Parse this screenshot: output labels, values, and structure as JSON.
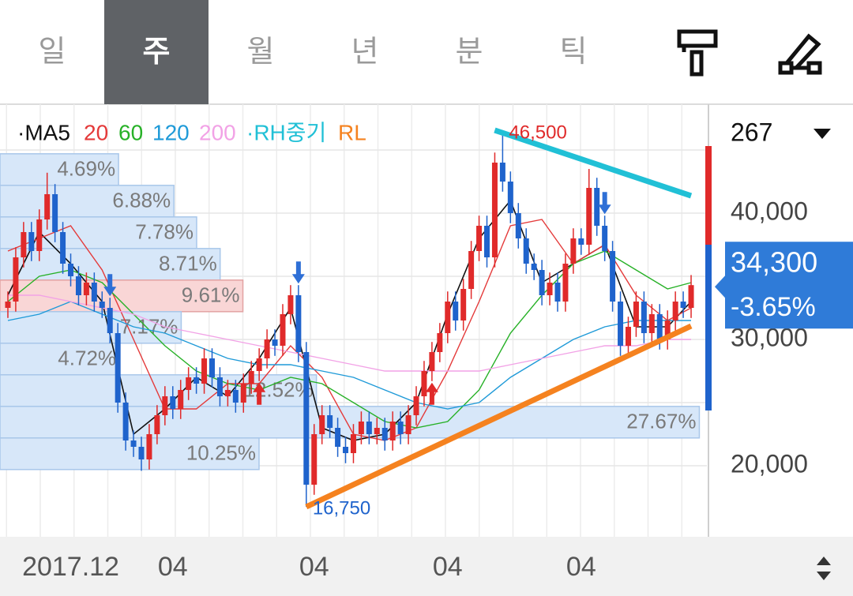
{
  "tabs": {
    "items": [
      "일",
      "주",
      "월",
      "년",
      "분",
      "틱"
    ],
    "selected": 1
  },
  "chart_data": {
    "type": "candlestick",
    "categories": [
      null,
      null,
      null,
      null,
      null,
      null,
      null,
      null,
      "2017.12",
      null,
      null,
      null,
      null,
      null,
      null,
      null,
      null,
      null,
      null,
      null,
      null,
      "04",
      null,
      null,
      null,
      null,
      null,
      null,
      null,
      null,
      null,
      null,
      null,
      null,
      null,
      null,
      null,
      null,
      null,
      "04",
      null,
      null,
      null,
      null,
      null,
      null,
      null,
      null,
      null,
      null,
      null,
      null,
      null,
      null,
      null,
      null,
      "04",
      null,
      null,
      null,
      null,
      null,
      null,
      null,
      null,
      null,
      null,
      null,
      null,
      null,
      null,
      null,
      null,
      "04",
      null,
      null,
      null,
      null,
      null,
      null,
      null,
      null,
      null,
      null,
      null,
      null,
      null,
      null
    ],
    "open": [
      32500,
      33000,
      36500,
      38500,
      37000,
      39500,
      41500,
      38500,
      36000,
      35000,
      33500,
      34500,
      33000,
      32500,
      30500,
      25000,
      22000,
      21500,
      20500,
      22500,
      24000,
      25500,
      24500,
      26000,
      27000,
      26500,
      28500,
      27000,
      25500,
      26000,
      25000,
      26500,
      27500,
      28500,
      30000,
      29500,
      32000,
      33500,
      29000,
      18500,
      22500,
      24000,
      23000,
      21500,
      21000,
      22500,
      23500,
      22500,
      23000,
      22000,
      23500,
      22500,
      24000,
      25500,
      27500,
      29000,
      30500,
      33000,
      31500,
      34000,
      37000,
      39000,
      36500,
      44000,
      42500,
      40000,
      38000,
      36000,
      35500,
      33500,
      34500,
      33000,
      36000,
      38000,
      37500,
      42000,
      39000,
      37000,
      33000,
      29500,
      31000,
      33000,
      30500,
      32000,
      30000,
      31500,
      33000,
      32500
    ],
    "high": [
      33800,
      37300,
      39300,
      39300,
      40300,
      43200,
      42300,
      39300,
      36800,
      35800,
      35300,
      35300,
      33800,
      33300,
      31300,
      25800,
      22800,
      22300,
      23300,
      24800,
      26300,
      26300,
      26800,
      27800,
      27800,
      29300,
      29300,
      27800,
      26800,
      26800,
      27300,
      28300,
      29300,
      30800,
      30800,
      32800,
      34300,
      34300,
      29800,
      23300,
      24800,
      24800,
      23800,
      22300,
      23300,
      24300,
      24300,
      23800,
      23800,
      24300,
      24300,
      24800,
      26300,
      28300,
      29800,
      31300,
      33800,
      33800,
      34800,
      37800,
      39800,
      39800,
      44800,
      46500,
      43300,
      40800,
      38800,
      36800,
      36300,
      35300,
      35300,
      36800,
      38800,
      38800,
      43500,
      42800,
      39800,
      37800,
      33800,
      31800,
      33800,
      33800,
      32800,
      32800,
      32300,
      33800,
      33800,
      35100
    ],
    "low": [
      31700,
      32200,
      35700,
      36200,
      36200,
      38700,
      37700,
      35200,
      34200,
      32700,
      32700,
      32200,
      31700,
      29700,
      24200,
      21200,
      20700,
      19600,
      19700,
      21700,
      23200,
      23700,
      23700,
      25200,
      25700,
      25700,
      26200,
      24700,
      24700,
      24200,
      24200,
      25700,
      26700,
      27700,
      28700,
      28700,
      31200,
      28200,
      16750,
      17700,
      21700,
      22200,
      20700,
      20200,
      20200,
      21700,
      21700,
      21700,
      21200,
      21200,
      21700,
      21700,
      23200,
      24700,
      26700,
      28200,
      29700,
      30700,
      30700,
      33200,
      36200,
      35700,
      35700,
      41700,
      39200,
      37200,
      35200,
      34700,
      32700,
      32700,
      32200,
      32200,
      35200,
      36700,
      36700,
      38200,
      36200,
      32200,
      28700,
      28700,
      30200,
      29700,
      29700,
      29200,
      29200,
      30700,
      31700,
      31700
    ],
    "close": [
      33000,
      36500,
      38500,
      37000,
      39500,
      41500,
      38500,
      36000,
      35000,
      33500,
      34500,
      33000,
      32500,
      30500,
      25000,
      22000,
      21500,
      20500,
      22500,
      24000,
      25500,
      24500,
      26000,
      27000,
      26500,
      28500,
      27000,
      25500,
      26000,
      25000,
      26500,
      27500,
      28500,
      30000,
      29500,
      32000,
      33500,
      29000,
      18500,
      22500,
      24000,
      23000,
      21500,
      21000,
      22500,
      23500,
      22500,
      23000,
      22000,
      23500,
      22500,
      24000,
      25500,
      27500,
      29000,
      30500,
      33000,
      31500,
      34000,
      37000,
      39000,
      36500,
      44000,
      42500,
      40000,
      38000,
      36000,
      35500,
      33500,
      34500,
      33000,
      36000,
      38000,
      37500,
      42000,
      39000,
      37000,
      33000,
      29500,
      31000,
      33000,
      30500,
      32000,
      30000,
      31500,
      33000,
      32500,
      34300
    ],
    "up_color": "#e02a2a",
    "down_color": "#1f63cc",
    "ylim": [
      14375,
      48625
    ],
    "yticks": [
      {
        "value": 20000,
        "label": "20,000"
      },
      {
        "value": 30000,
        "label": "30,000"
      },
      {
        "value": 40000,
        "label": "40,000"
      }
    ],
    "grid_lines": [
      20000,
      25000,
      30000,
      35000,
      40000,
      45000
    ],
    "moving_averages": [
      {
        "name": "·MA5",
        "color": "#111111",
        "x": [
          0,
          4,
          8,
          12,
          16,
          20,
          24,
          28,
          32,
          36,
          40,
          44,
          48,
          52,
          56,
          60,
          64,
          68,
          72,
          76,
          80,
          84,
          87
        ],
        "values": [
          33500,
          38500,
          36000,
          33000,
          22500,
          24500,
          27000,
          25500,
          28500,
          32500,
          23000,
          22000,
          22500,
          25000,
          32000,
          38000,
          41000,
          34500,
          36000,
          37500,
          31000,
          31000,
          33000
        ]
      },
      {
        "name": "20",
        "color": "#e43a3a",
        "x": [
          0,
          4,
          8,
          12,
          16,
          20,
          24,
          28,
          32,
          36,
          40,
          44,
          48,
          52,
          56,
          60,
          64,
          68,
          72,
          76,
          80,
          84,
          87
        ],
        "values": [
          37000,
          38000,
          39000,
          35500,
          30000,
          24500,
          24500,
          26500,
          26500,
          29500,
          27000,
          22500,
          22000,
          23000,
          27500,
          33000,
          39000,
          39500,
          36000,
          37500,
          33500,
          31500,
          32500
        ]
      },
      {
        "name": "60",
        "color": "#27b127",
        "x": [
          0,
          4,
          8,
          12,
          16,
          20,
          24,
          28,
          32,
          36,
          40,
          44,
          48,
          52,
          56,
          60,
          64,
          68,
          72,
          76,
          80,
          84,
          87
        ],
        "values": [
          33000,
          35000,
          35500,
          34500,
          32000,
          29500,
          27500,
          26500,
          26000,
          27000,
          26500,
          25000,
          23500,
          23000,
          23500,
          26000,
          30500,
          33500,
          36000,
          37000,
          35500,
          34000,
          34500
        ]
      },
      {
        "name": "120",
        "color": "#1f9ad8",
        "x": [
          0,
          4,
          8,
          12,
          16,
          20,
          24,
          28,
          32,
          36,
          40,
          44,
          48,
          52,
          56,
          60,
          64,
          68,
          72,
          76,
          80,
          84,
          87
        ],
        "values": [
          31500,
          32000,
          33000,
          32000,
          31000,
          30500,
          29500,
          28500,
          28000,
          28000,
          27500,
          27000,
          26000,
          25000,
          24500,
          25000,
          27000,
          28500,
          30000,
          31000,
          31500,
          31500,
          31500
        ]
      },
      {
        "name": "200",
        "color": "#f2a2e6",
        "x": [
          0,
          4,
          8,
          12,
          16,
          20,
          24,
          28,
          32,
          36,
          40,
          44,
          48,
          52,
          56,
          60,
          64,
          68,
          72,
          76,
          80,
          84,
          87
        ],
        "values": [
          33500,
          33500,
          33000,
          32500,
          32000,
          31000,
          30500,
          30000,
          29500,
          29000,
          28500,
          28000,
          27500,
          27500,
          27500,
          27500,
          28000,
          28500,
          29000,
          29500,
          29500,
          30000,
          30000
        ]
      }
    ],
    "trendlines": [
      {
        "name": "·RH중기",
        "color": "#21c0d6",
        "x": [
          62,
          87
        ],
        "values": [
          46560,
          41375
        ]
      },
      {
        "name": "RL",
        "color": "#f5821f",
        "x": [
          38,
          87
        ],
        "values": [
          16750,
          31060
        ]
      }
    ],
    "signals": [
      {
        "x": 13,
        "direction": "down"
      },
      {
        "x": 32,
        "direction": "up"
      },
      {
        "x": 37,
        "direction": "down"
      },
      {
        "x": 54,
        "direction": "up"
      },
      {
        "x": 76,
        "direction": "down"
      }
    ],
    "annotations": [
      {
        "text": "46,500",
        "value": 46500,
        "x": 63,
        "color": "#e02a2a"
      },
      {
        "text": "16,750",
        "value": 16750,
        "x": 38,
        "color": "#1f63cc"
      }
    ],
    "volume_profile": {
      "bins": [
        44700,
        42200,
        39700,
        37200,
        34700,
        32200,
        29700,
        27200,
        24700,
        22200,
        19700
      ],
      "values": [
        4.69,
        6.88,
        7.78,
        8.71,
        9.61,
        7.17,
        4.72,
        12.52,
        27.67,
        10.25
      ],
      "value_labels": [
        "4.69%",
        "6.88%",
        "7.78%",
        "8.71%",
        "9.61%",
        "7.17%",
        "4.72%",
        "12.52%",
        "27.67%",
        "10.25%"
      ],
      "color": "#d7e7f9",
      "highlight_index": 4,
      "highlight_color": "#f9d6d6"
    },
    "period": 267,
    "last_price": {
      "value": 34300,
      "label": "34,300"
    },
    "change": {
      "value": -3.65,
      "label": "-3.65%"
    }
  }
}
